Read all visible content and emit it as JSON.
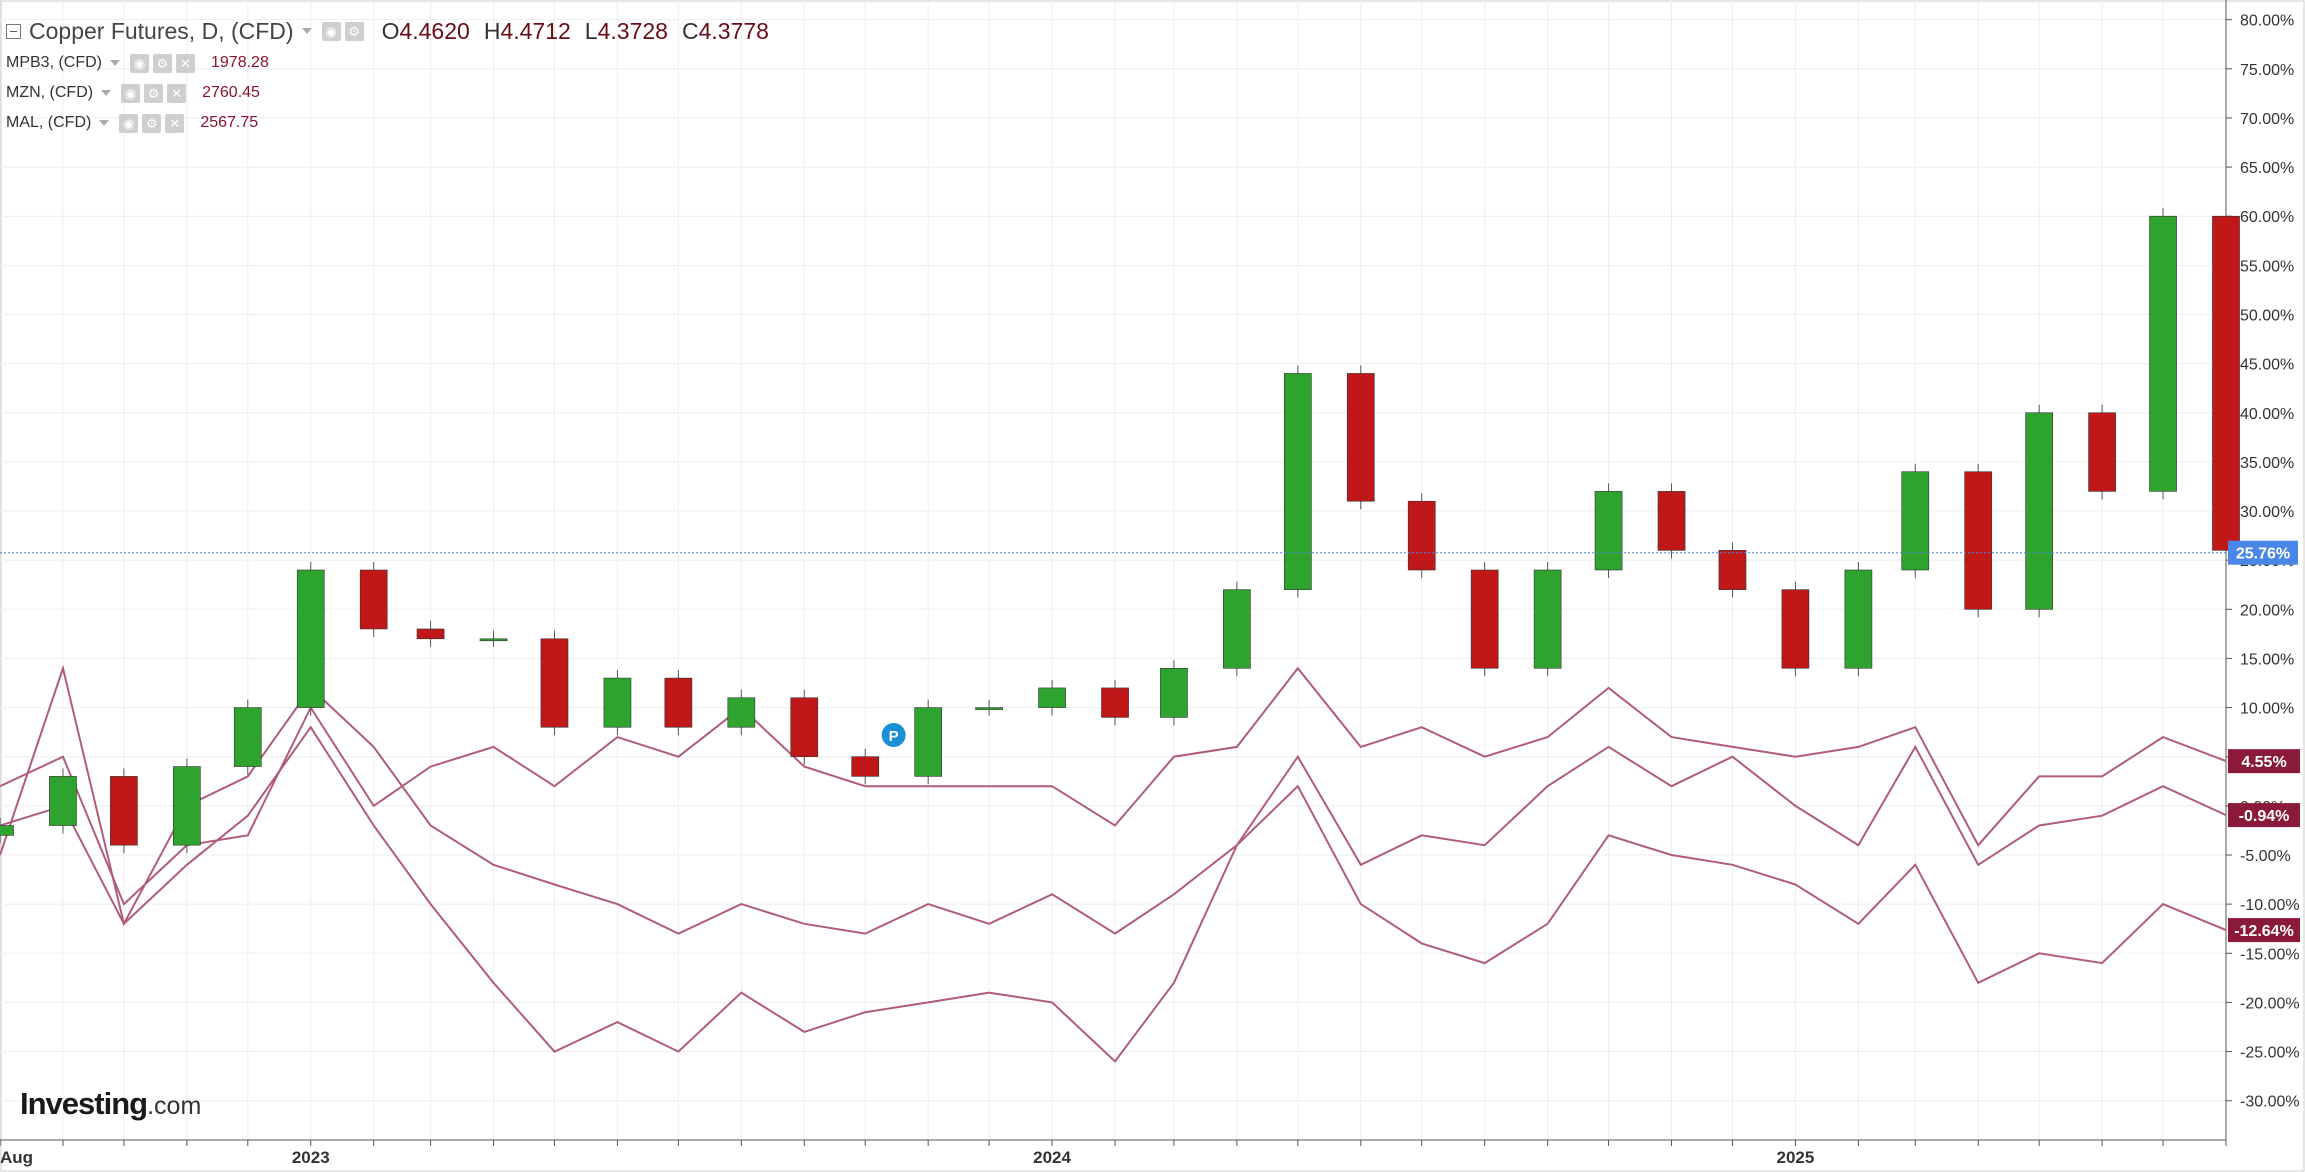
{
  "legend": {
    "main": {
      "name": "Copper Futures, D, (CFD)",
      "open_label": "O",
      "open": "4.4620",
      "high_label": "H",
      "high": "4.4712",
      "low_label": "L",
      "low": "4.3728",
      "close_label": "C",
      "close": "4.3778"
    },
    "comparisons": [
      {
        "name": "MPB3, (CFD)",
        "value": "1978.28"
      },
      {
        "name": "MZN, (CFD)",
        "value": "2760.45"
      },
      {
        "name": "MAL, (CFD)",
        "value": "2567.75"
      }
    ]
  },
  "watermark": {
    "brand": "Investing",
    "suffix": ".com"
  },
  "colors": {
    "up": "#2ea32e",
    "down": "#c01818",
    "wick": "#555555",
    "compare": "#b05c7c",
    "badge_compare": "#8b1a3a",
    "badge_last": "#4a86e8",
    "grid": "#eeeeee",
    "axis": "#555555",
    "marker": "#1a8fd6"
  },
  "chart_data": {
    "type": "line",
    "title": "Copper Futures, D, (CFD)",
    "xlabel": "",
    "ylabel": "",
    "y_unit": "percent change",
    "ylim": [
      -34,
      82
    ],
    "y_ticks": [
      "80.00%",
      "75.00%",
      "70.00%",
      "65.00%",
      "60.00%",
      "55.00%",
      "50.00%",
      "45.00%",
      "40.00%",
      "35.00%",
      "30.00%",
      "25.00%",
      "20.00%",
      "15.00%",
      "10.00%",
      "5.00%",
      "0.00%",
      "-5.00%",
      "-10.00%",
      "-15.00%",
      "-20.00%",
      "-25.00%",
      "-30.00%"
    ],
    "x_range": [
      "2022-08",
      "2025-08"
    ],
    "x_ticks": [
      {
        "label": "Aug",
        "date": "2022-08"
      },
      {
        "label": "2023",
        "date": "2023-01"
      },
      {
        "label": "2024",
        "date": "2024-01"
      },
      {
        "label": "2025",
        "date": "2025-01"
      }
    ],
    "grid": true,
    "last_value_label": "25.76%",
    "last_value": 25.76,
    "marker": {
      "label": "P",
      "date": "2023-10-15"
    },
    "candles": {
      "name": "Copper Futures, D, (CFD)",
      "dates": [
        "2022-08",
        "2022-09",
        "2022-10",
        "2022-11",
        "2022-12",
        "2023-01",
        "2023-02",
        "2023-03",
        "2023-04",
        "2023-05",
        "2023-06",
        "2023-07",
        "2023-08",
        "2023-09",
        "2023-10",
        "2023-11",
        "2023-12",
        "2024-01",
        "2024-02",
        "2024-03",
        "2024-04",
        "2024-05",
        "2024-06",
        "2024-07",
        "2024-08",
        "2024-09",
        "2024-10",
        "2024-11",
        "2024-12",
        "2025-01",
        "2025-02",
        "2025-03",
        "2025-04",
        "2025-05",
        "2025-06",
        "2025-07",
        "2025-08"
      ],
      "values": [
        -2,
        3,
        -4,
        4,
        10,
        24,
        18,
        17,
        17,
        8,
        13,
        8,
        11,
        5,
        3,
        10,
        10,
        12,
        9,
        14,
        22,
        44,
        31,
        24,
        14,
        24,
        32,
        26,
        22,
        14,
        24,
        34,
        20,
        40,
        32,
        60,
        26
      ]
    },
    "series": [
      {
        "name": "MPB3, (CFD)",
        "end_label": "-0.94%",
        "values": [
          -5,
          14,
          -12,
          0,
          3,
          12,
          6,
          -2,
          -6,
          -8,
          -10,
          -13,
          -10,
          -12,
          -13,
          -10,
          -12,
          -9,
          -13,
          -9,
          -4,
          5,
          -6,
          -3,
          -4,
          2,
          6,
          2,
          5,
          0,
          -4,
          6,
          -6,
          -2,
          -1,
          2,
          -0.94
        ]
      },
      {
        "name": "MZN, (CFD)",
        "end_label": "4.55%",
        "values": [
          2,
          5,
          -10,
          -4,
          -3,
          10,
          0,
          4,
          6,
          2,
          7,
          5,
          10,
          4,
          2,
          2,
          2,
          2,
          -2,
          5,
          6,
          14,
          6,
          8,
          5,
          7,
          12,
          7,
          6,
          5,
          6,
          8,
          -4,
          3,
          3,
          7,
          4.55
        ]
      },
      {
        "name": "MAL, (CFD)",
        "end_label": "-12.64%",
        "values": [
          -2,
          0,
          -12,
          -6,
          -1,
          8,
          -2,
          -10,
          -18,
          -25,
          -22,
          -25,
          -19,
          -23,
          -21,
          -20,
          -19,
          -20,
          -26,
          -18,
          -4,
          2,
          -10,
          -14,
          -16,
          -12,
          -3,
          -5,
          -6,
          -8,
          -12,
          -6,
          -18,
          -15,
          -16,
          -10,
          -12.64
        ]
      }
    ]
  }
}
